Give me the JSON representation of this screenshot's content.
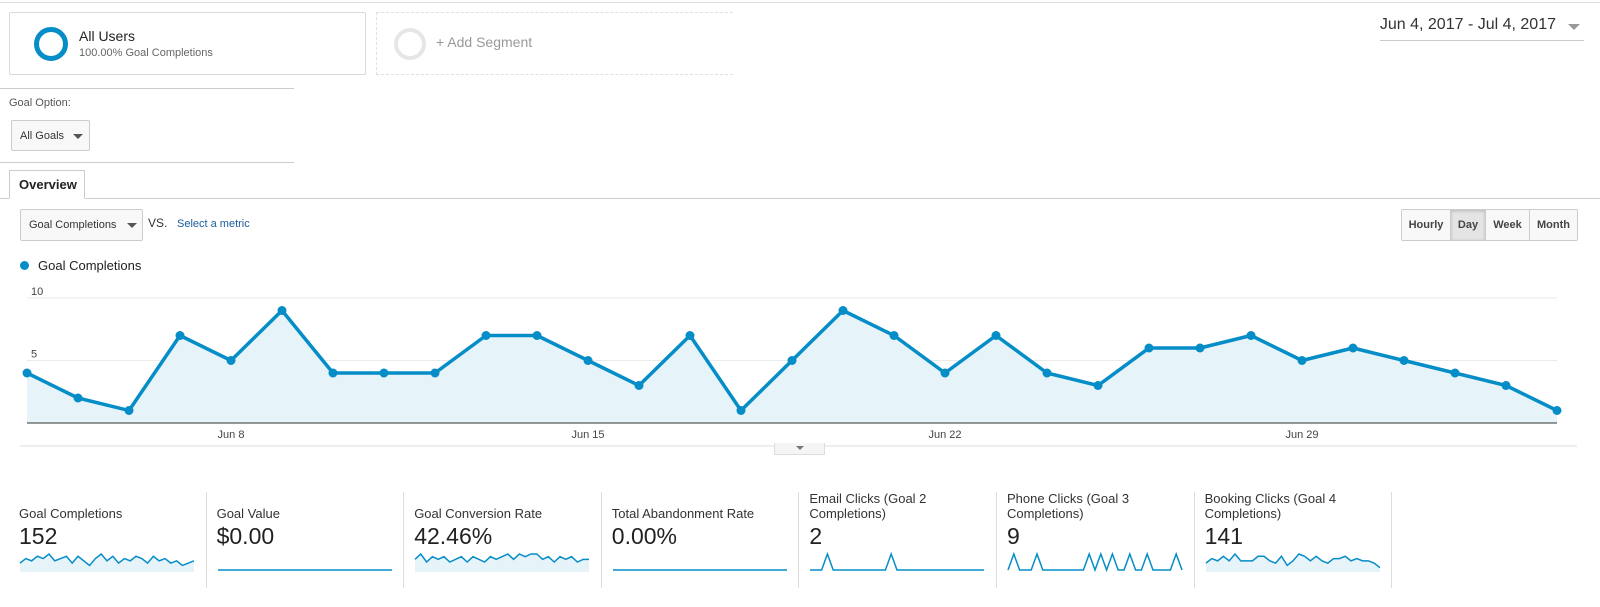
{
  "segment": {
    "title": "All Users",
    "subtitle": "100.00% Goal Completions",
    "add_label": "+ Add Segment"
  },
  "date_range": "Jun 4, 2017 - Jul 4, 2017",
  "goal_option": {
    "label": "Goal Option:",
    "selected": "All Goals"
  },
  "tabs": {
    "overview": "Overview"
  },
  "metric_selector": {
    "selected": "Goal Completions",
    "vs_label": "VS.",
    "select_metric": "Select a metric"
  },
  "ranges": [
    "Hourly",
    "Day",
    "Week",
    "Month"
  ],
  "range_active": "Day",
  "colors": {
    "series": "#058dc7",
    "area": "#e6f3f9"
  },
  "chart_data": {
    "type": "area",
    "series_name": "Goal Completions",
    "y_ticks": [
      "10",
      "5"
    ],
    "ylim": [
      0,
      10
    ],
    "x_start": "Jun 4",
    "x_tick_labels": [
      "Jun 8",
      "Jun 15",
      "Jun 22",
      "Jun 29"
    ],
    "x_tick_indices": [
      4,
      11,
      18,
      25
    ],
    "values": [
      4,
      2,
      1,
      7,
      5,
      9,
      4,
      4,
      4,
      7,
      7,
      5,
      3,
      7,
      1,
      5,
      9,
      7,
      4,
      7,
      4,
      3,
      6,
      6,
      7,
      5,
      6,
      5,
      4,
      3,
      1
    ]
  },
  "tiles": [
    {
      "label": "Goal Completions",
      "value": "152",
      "spark": [
        3,
        5,
        4,
        6,
        5,
        7,
        4,
        5,
        6,
        3,
        6,
        4,
        2,
        5,
        7,
        4,
        6,
        3,
        5,
        4,
        6,
        5,
        3,
        6,
        4,
        5,
        3,
        4,
        2,
        3,
        4
      ],
      "fill": true
    },
    {
      "label": "Goal Value",
      "value": "$0.00",
      "spark": [
        0,
        0,
        0,
        0,
        0,
        0,
        0,
        0,
        0,
        0,
        0,
        0,
        0,
        0,
        0,
        0,
        0,
        0,
        0,
        0,
        0,
        0,
        0,
        0,
        0,
        0,
        0,
        0,
        0,
        0,
        0
      ],
      "fill": false
    },
    {
      "label": "Goal Conversion Rate",
      "value": "42.46%",
      "spark": [
        4,
        6,
        3,
        5,
        4,
        5,
        3,
        4,
        5,
        3,
        5,
        4,
        3,
        5,
        4,
        5,
        6,
        4,
        6,
        5,
        6,
        6,
        4,
        5,
        3,
        5,
        4,
        5,
        3,
        4,
        4
      ],
      "fill": true
    },
    {
      "label": "Total Abandonment Rate",
      "value": "0.00%",
      "spark": [
        0,
        0,
        0,
        0,
        0,
        0,
        0,
        0,
        0,
        0,
        0,
        0,
        0,
        0,
        0,
        0,
        0,
        0,
        0,
        0,
        0,
        0,
        0,
        0,
        0,
        0,
        0,
        0,
        0,
        0,
        0
      ],
      "fill": false
    },
    {
      "label": "Email Clicks (Goal 2 Completions)",
      "value": "2",
      "spark": [
        0,
        0,
        0,
        1,
        0,
        0,
        0,
        0,
        0,
        0,
        0,
        0,
        0,
        0,
        1,
        0,
        0,
        0,
        0,
        0,
        0,
        0,
        0,
        0,
        0,
        0,
        0,
        0,
        0,
        0,
        0
      ],
      "fill": false
    },
    {
      "label": "Phone Clicks (Goal 3 Completions)",
      "value": "9",
      "spark": [
        0,
        1,
        0,
        0,
        0,
        1,
        0,
        0,
        0,
        0,
        0,
        0,
        0,
        0,
        1,
        0,
        1,
        0,
        1,
        0,
        0,
        1,
        0,
        0,
        1,
        0,
        0,
        0,
        0,
        1,
        0
      ],
      "fill": false
    },
    {
      "label": "Booking Clicks (Goal 4 Completions)",
      "value": "141",
      "spark": [
        3,
        5,
        4,
        6,
        4,
        7,
        4,
        4,
        4,
        6,
        6,
        4,
        3,
        6,
        2,
        4,
        7,
        6,
        4,
        6,
        4,
        3,
        5,
        5,
        6,
        4,
        5,
        4,
        4,
        3,
        1
      ],
      "fill": true
    }
  ]
}
